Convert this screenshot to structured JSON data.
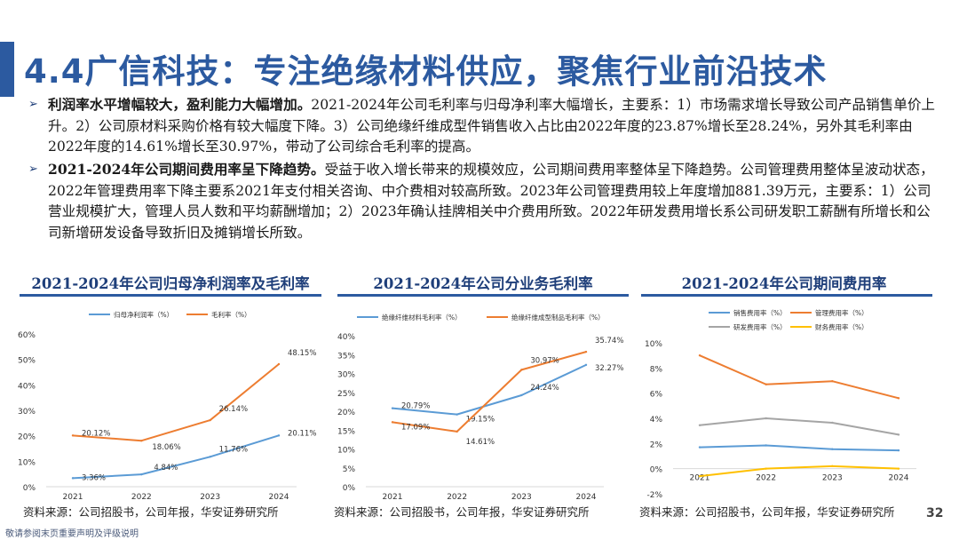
{
  "title": "4.4广信科技：专注绝缘材料供应，聚焦行业前沿技术",
  "bullets": [
    {
      "lead": "利润率水平增幅较大，盈利能力大幅增加。",
      "text": "2021-2024年公司毛利率与归母净利率大幅增长，主要系：1）市场需求增长导致公司产品销售单价上升。2）公司原材料采购价格有较大幅度下降。3）公司绝缘纤维成型件销售收入占比由2022年度的23.87%增长至28.24%，另外其毛利率由2022年度的14.61%增长至30.97%，带动了公司综合毛利率的提高。"
    },
    {
      "lead": "2021-2024年公司期间费用率呈下降趋势。",
      "text": "受益于收入增长带来的规模效应，公司期间费用率整体呈下降趋势。公司管理费用整体呈波动状态，2022年管理费用率下降主要系2021年支付相关咨询、中介费相对较高所致。2023年公司管理费用较上年度增加881.39万元，主要系：1）公司营业规模扩大，管理人员人数和平均薪酬增加；2）2023年确认挂牌相关中介费用所致。2022年研发费用增长系公司研发职工薪酬有所增长和公司新增研发设备导致折旧及摊销增长所致。"
    }
  ],
  "colors": {
    "blue": "#5b9bd5",
    "orange": "#ed7d31",
    "gray": "#a5a5a5",
    "yellow": "#ffc000",
    "axis": "#d9d9d9",
    "title": "#1f3f7a"
  },
  "chart_data": [
    {
      "type": "line",
      "title": "2021-2024年公司归母净利润率及毛利率",
      "x": [
        "2021",
        "2022",
        "2023",
        "2024"
      ],
      "ylim": [
        0,
        60
      ],
      "yticks": [
        0,
        10,
        20,
        30,
        40,
        50,
        60
      ],
      "ytick_labels": [
        "0%",
        "10%",
        "20%",
        "30%",
        "40%",
        "50%",
        "60%"
      ],
      "legend": "top",
      "series": [
        {
          "name": "归母净利润率（%）",
          "color": "#5b9bd5",
          "values": [
            3.36,
            4.84,
            11.76,
            20.11
          ],
          "labels": [
            "3.36%",
            "4.84%",
            "11.76%",
            "20.11%"
          ]
        },
        {
          "name": "毛利率（%）",
          "color": "#ed7d31",
          "values": [
            20.12,
            18.06,
            26.14,
            48.15
          ],
          "labels": [
            "20.12%",
            "18.06%",
            "26.14%",
            "48.15%"
          ]
        }
      ]
    },
    {
      "type": "line",
      "title": "2021-2024年公司分业务毛利率",
      "x": [
        "2021",
        "2022",
        "2023",
        "2024"
      ],
      "ylim": [
        0,
        40
      ],
      "yticks": [
        0,
        5,
        10,
        15,
        20,
        25,
        30,
        35,
        40
      ],
      "ytick_labels": [
        "0%",
        "5%",
        "10%",
        "15%",
        "20%",
        "25%",
        "30%",
        "35%",
        "40%"
      ],
      "legend": "top",
      "series": [
        {
          "name": "绝缘纤维材料毛利率（%）",
          "color": "#5b9bd5",
          "values": [
            20.79,
            19.15,
            24.24,
            32.27
          ],
          "labels": [
            "20.79%",
            "19.15%",
            "24.24%",
            "32.27%"
          ]
        },
        {
          "name": "绝缘纤维成型制品毛利率（%）",
          "color": "#ed7d31",
          "values": [
            17.09,
            14.61,
            30.97,
            35.74
          ],
          "labels": [
            "17.09%",
            "14.61%",
            "30.97%",
            "35.74%"
          ]
        }
      ]
    },
    {
      "type": "line",
      "title": "2021-2024年公司期间费用率",
      "x": [
        "2021",
        "2022",
        "2023",
        "2024"
      ],
      "ylim": [
        -2,
        10
      ],
      "yticks": [
        -2,
        0,
        2,
        4,
        6,
        8,
        10
      ],
      "ytick_labels": [
        "-2%",
        "0%",
        "2%",
        "4%",
        "6%",
        "8%",
        "10%"
      ],
      "legend": "top",
      "series": [
        {
          "name": "销售费用率（%）",
          "color": "#5b9bd5",
          "values": [
            1.7,
            1.85,
            1.55,
            1.45
          ],
          "labels": [
            "",
            "",
            "",
            ""
          ]
        },
        {
          "name": "管理费用率（%）",
          "color": "#ed7d31",
          "values": [
            9.0,
            6.7,
            6.95,
            5.6
          ],
          "labels": [
            "",
            "",
            "",
            ""
          ]
        },
        {
          "name": "研发费用率（%）",
          "color": "#a5a5a5",
          "values": [
            3.45,
            4.0,
            3.65,
            2.7
          ],
          "labels": [
            "",
            "",
            "",
            ""
          ]
        },
        {
          "name": "财务费用率（%）",
          "color": "#ffc000",
          "values": [
            -0.6,
            0.0,
            0.2,
            0.0
          ],
          "labels": [
            "",
            "",
            "",
            ""
          ]
        }
      ]
    }
  ],
  "sources": [
    "资料来源：公司招股书，公司年报，华安证券研究所",
    "资料来源：公司招股书，公司年报，华安证券研究所",
    "资料来源：公司招股书，公司年报，华安证券研究所"
  ],
  "footer": "敬请参阅末页重要声明及评级说明",
  "page_number": "32"
}
